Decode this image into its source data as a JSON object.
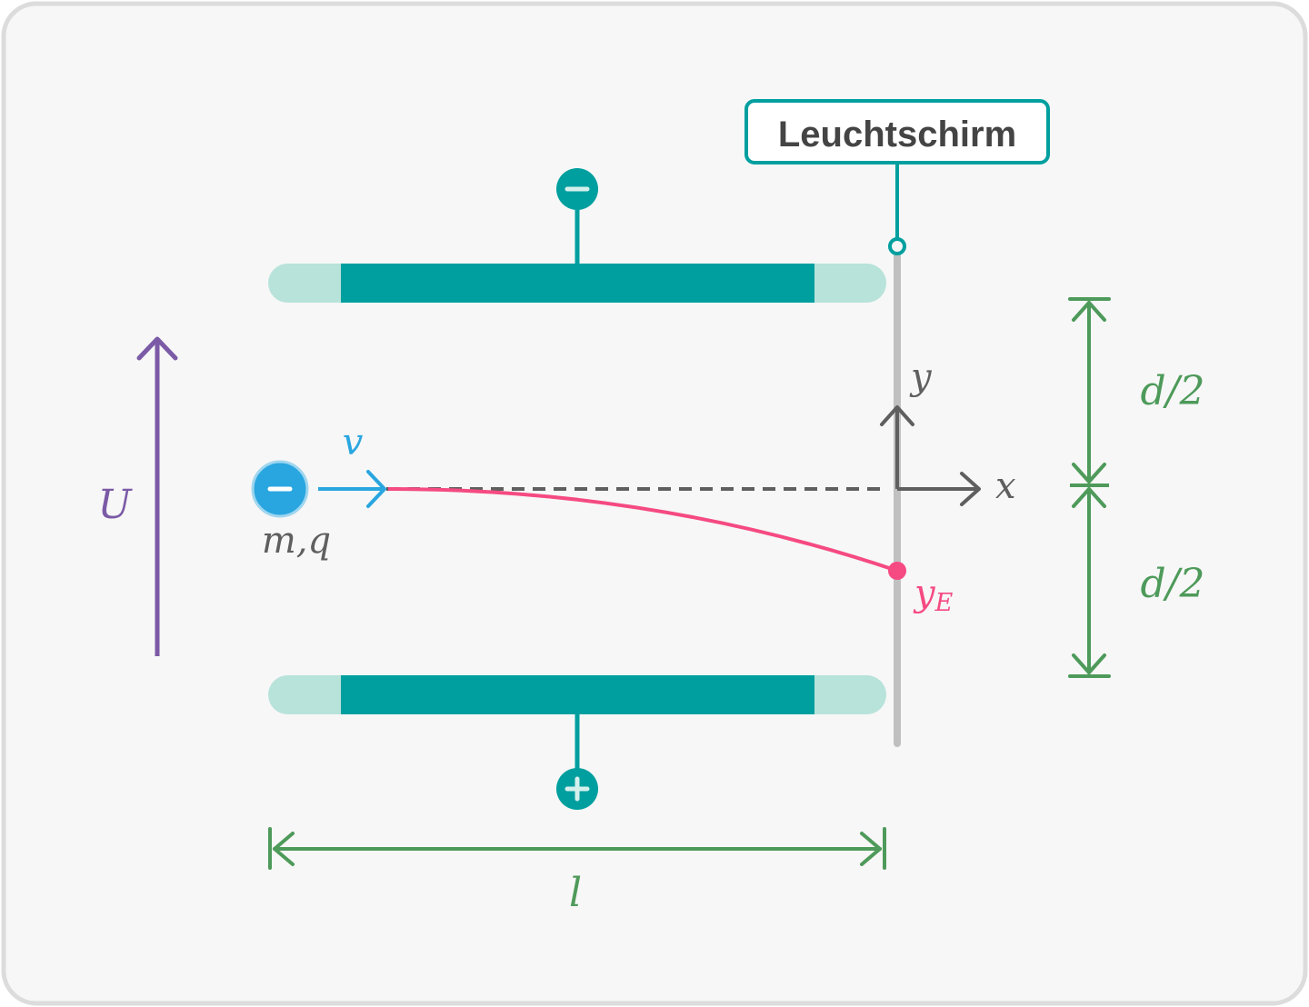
{
  "colors": {
    "background": "#f7f7f7",
    "frame": "#dcdcdc",
    "teal": "#009f9f",
    "teal_light": "#b8e3da",
    "screen": "#c0c0c0",
    "axis": "#5f5f5f",
    "trajectory": "#f54a82",
    "electron": "#29a6e0",
    "voltage": "#7b5aa6",
    "dimension": "#4e9a5a",
    "label_text": "#444444"
  },
  "labels": {
    "screen": "Leuchtschirm",
    "velocity": "v",
    "mass_charge": "m,q",
    "voltage": "U",
    "axis_x": "x",
    "axis_y": "y",
    "exit_y_base": "y",
    "exit_y_sub": "E",
    "half_distance_top": "d/2",
    "half_distance_bottom": "d/2",
    "length": "l",
    "top_plate_sign": "−",
    "bottom_plate_sign": "+",
    "electron_sign": "−"
  },
  "icons": {
    "electron": "electron-minus-icon",
    "minus_terminal": "minus-icon",
    "plus_terminal": "plus-icon"
  }
}
